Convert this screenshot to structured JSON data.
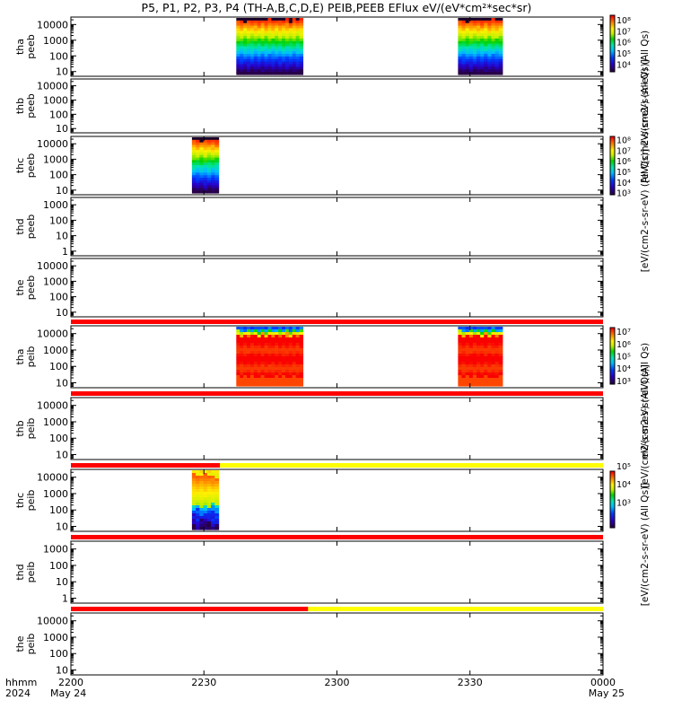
{
  "title": "P5, P1, P2, P3, P4 (TH-A,B,C,D,E) PEIB,PEEB EFlux eV/(eV*cm²*sec*sr)",
  "colorbar_labels": {
    "peeb_a": "eV/(cm2-s-sr-eV) (All Qs)",
    "peeb_b_over": "[eV/(cm2-s-sr-eV) (All Qs)]",
    "peeb_c": "[eV/(cm2-s-sr-eV) (All Qs)]",
    "peib_a": "eV/(cm2-s-sr-eV) (All Qs)",
    "peib_b_over": "[eV/(cm2-s-sr-eV) (All Qs)]",
    "peib_c": "[eV/(cm2-s-sr-eV) (All Qs)]"
  },
  "colors": {
    "quality_red": "#ff0000",
    "quality_yellow": "#ffff00",
    "background": "#ffffff"
  },
  "chart_data": {
    "type": "heatmap",
    "time_axis": {
      "ticks": [
        "2200",
        "2230",
        "2300",
        "2330",
        "0000"
      ],
      "tick_minutes": [
        0,
        30,
        60,
        90,
        120
      ],
      "range_minutes": [
        0,
        120
      ],
      "row_label": "hhmm",
      "date_label": "2024",
      "start_date": "May 24",
      "end_date": "May 25"
    },
    "panels": [
      {
        "label": [
          "tha",
          "peeb"
        ],
        "yticks": [
          "10000",
          "1000",
          "100",
          "10"
        ],
        "ylog": [
          5,
          30000
        ],
        "spectra": [
          {
            "t": [
              37.3,
              52.3
            ],
            "profile": "electron"
          },
          {
            "t": [
              87.3,
              97.3
            ],
            "profile": "electron"
          }
        ],
        "colorbar": {
          "ticks": [
            "10⁸",
            "10⁷",
            "10⁶",
            "10⁵",
            "10⁴"
          ],
          "range_exp": [
            3.3,
            8.4
          ],
          "label": "peeb_a"
        }
      },
      {
        "label": [
          "thb",
          "peeb"
        ],
        "yticks": [
          "10000",
          "1000",
          "100",
          "10"
        ],
        "ylog": [
          5,
          30000
        ],
        "spectra": []
      },
      {
        "label": [
          "thc",
          "peeb"
        ],
        "yticks": [
          "10000",
          "1000",
          "100",
          "10"
        ],
        "ylog": [
          5,
          30000
        ],
        "spectra": [
          {
            "t": [
              27.3,
              33.3
            ],
            "profile": "electron"
          }
        ],
        "colorbar": {
          "ticks": [
            "10⁸",
            "10⁷",
            "10⁶",
            "10⁵",
            "10⁴",
            "10³"
          ],
          "range_exp": [
            2.8,
            8.3
          ],
          "label": "peeb_c"
        }
      },
      {
        "label": [
          "thd",
          "peeb"
        ],
        "yticks": [
          "1000",
          "100",
          "10",
          "1"
        ],
        "ylog": [
          0.5,
          3000
        ],
        "spectra": []
      },
      {
        "label": [
          "the",
          "peeb"
        ],
        "yticks": [
          "10000",
          "1000",
          "100",
          "10"
        ],
        "ylog": [
          5,
          30000
        ],
        "spectra": []
      },
      {
        "label": [
          "tha",
          "peib"
        ],
        "yticks": [
          "10000",
          "1000",
          "100",
          "10"
        ],
        "ylog": [
          5,
          30000
        ],
        "quality": [
          {
            "t": [
              0,
              120
            ],
            "color": "red"
          }
        ],
        "spectra": [
          {
            "t": [
              37.3,
              52.3
            ],
            "profile": "ion"
          },
          {
            "t": [
              87.3,
              97.3
            ],
            "profile": "ion"
          }
        ],
        "colorbar": {
          "ticks": [
            "10⁷",
            "10⁶",
            "10⁵",
            "10⁴",
            "10³"
          ],
          "range_exp": [
            2.7,
            7.3
          ],
          "label": "peib_a"
        }
      },
      {
        "label": [
          "thb",
          "peib"
        ],
        "yticks": [
          "10000",
          "1000",
          "100",
          "10"
        ],
        "ylog": [
          5,
          30000
        ],
        "quality": [
          {
            "t": [
              0,
              120
            ],
            "color": "red"
          }
        ],
        "spectra": []
      },
      {
        "label": [
          "thc",
          "peib"
        ],
        "yticks": [
          "10000",
          "1000",
          "100",
          "10"
        ],
        "ylog": [
          5,
          30000
        ],
        "quality": [
          {
            "t": [
              0,
              33.6
            ],
            "color": "red"
          },
          {
            "t": [
              33.6,
              120
            ],
            "color": "yellow"
          }
        ],
        "spectra": [
          {
            "t": [
              27.3,
              33.3
            ],
            "profile": "ion_c"
          }
        ],
        "colorbar": {
          "ticks": [
            "10⁵",
            "10⁴",
            "10³"
          ],
          "range_exp": [
            2.6,
            5.7
          ],
          "label": "peib_c"
        }
      },
      {
        "label": [
          "thd",
          "peib"
        ],
        "yticks": [
          "1000",
          "100",
          "10",
          "1"
        ],
        "ylog": [
          0.5,
          3000
        ],
        "quality": [
          {
            "t": [
              0,
              120
            ],
            "color": "red"
          }
        ],
        "spectra": []
      },
      {
        "label": [
          "the",
          "peib"
        ],
        "yticks": [
          "10000",
          "1000",
          "100",
          "10"
        ],
        "ylog": [
          5,
          30000
        ],
        "quality": [
          {
            "t": [
              0,
              53.5
            ],
            "color": "red"
          },
          {
            "t": [
              53.5,
              120
            ],
            "color": "yellow"
          }
        ],
        "spectra": []
      }
    ]
  }
}
